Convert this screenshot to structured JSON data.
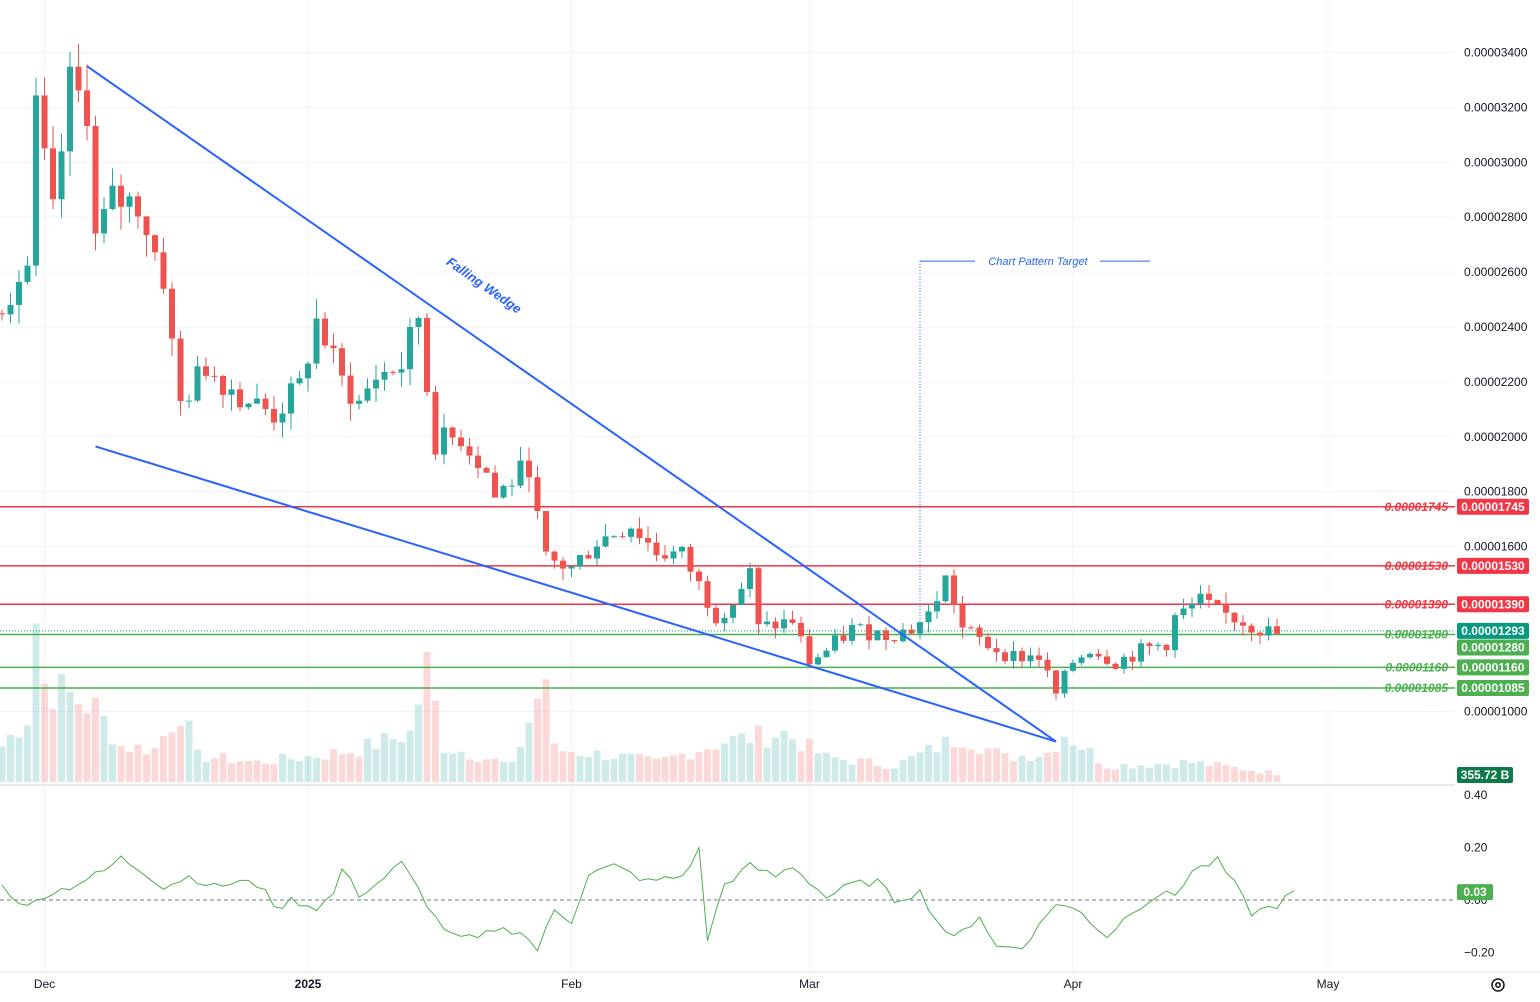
{
  "colors": {
    "up": "#26a69a",
    "down": "#ef5350",
    "resistance": "#f23645",
    "support": "#4caf50",
    "trendline": "#2962ff",
    "oscillator": "#4caf50",
    "grid": "#f0f3fa",
    "last_price": "#089981",
    "volume_badge": "#0e7a4a"
  },
  "price_axis": {
    "ticks": [
      "0.00003400",
      "0.00003200",
      "0.00003000",
      "0.00002800",
      "0.00002600",
      "0.00002400",
      "0.00002200",
      "0.00002000",
      "0.00001800",
      "0.00001600",
      "0.00001000"
    ],
    "tick_values": [
      3.4e-05,
      3.2e-05,
      3e-05,
      2.8e-05,
      2.6e-05,
      2.4e-05,
      2.2e-05,
      2e-05,
      1.8e-05,
      1.6e-05,
      1e-05
    ],
    "range": [
      8.3e-06,
      3.5e-05
    ]
  },
  "oscillator_axis": {
    "ticks": [
      "0.40",
      "0.20",
      "0.00",
      "−0.20"
    ],
    "tick_values": [
      0.4,
      0.2,
      0.0,
      -0.2
    ],
    "range": [
      -0.26,
      0.42
    ]
  },
  "date_axis": {
    "labels": [
      "Dec",
      "2025",
      "Feb",
      "Mar",
      "Apr",
      "May"
    ],
    "label_days": [
      5,
      36,
      67,
      95,
      126,
      156
    ]
  },
  "levels": [
    {
      "label": "0.00001745",
      "value": 1.745e-05,
      "kind": "resistance"
    },
    {
      "label": "0.00001530",
      "value": 1.53e-05,
      "kind": "resistance"
    },
    {
      "label": "0.00001390",
      "value": 1.39e-05,
      "kind": "resistance"
    },
    {
      "label": "0.00001280",
      "value": 1.28e-05,
      "kind": "support"
    },
    {
      "label": "0.00001160",
      "value": 1.16e-05,
      "kind": "support"
    },
    {
      "label": "0.00001085",
      "value": 1.085e-05,
      "kind": "support"
    }
  ],
  "last_price": {
    "label": "0.00001293",
    "value": 1.293e-05
  },
  "volume_badge": {
    "label": "355.72 B"
  },
  "oscillator_badge": {
    "label": "0.03",
    "value": 0.03
  },
  "annotations": {
    "pattern_name": "Falling Wedge",
    "target_label": "Chart Pattern Target"
  },
  "chart_data": {
    "type": "candlestick",
    "title": "",
    "xlabel": "",
    "ylabel": "",
    "grid": true,
    "candle_anchors": [
      {
        "day": 0,
        "close": 2.5e-05
      },
      {
        "day": 3,
        "close": 2.62e-05
      },
      {
        "day": 4,
        "close": 3.18e-05
      },
      {
        "day": 6,
        "close": 2.8e-05
      },
      {
        "day": 8,
        "close": 3.28e-05
      },
      {
        "day": 10,
        "close": 3.2e-05
      },
      {
        "day": 11,
        "close": 2.72e-05
      },
      {
        "day": 13,
        "close": 2.86e-05
      },
      {
        "day": 16,
        "close": 2.85e-05
      },
      {
        "day": 19,
        "close": 2.58e-05
      },
      {
        "day": 20,
        "close": 2.33e-05
      },
      {
        "day": 21,
        "close": 2.12e-05
      },
      {
        "day": 24,
        "close": 2.26e-05
      },
      {
        "day": 28,
        "close": 2.15e-05
      },
      {
        "day": 32,
        "close": 2.08e-05
      },
      {
        "day": 35,
        "close": 2.18e-05
      },
      {
        "day": 37,
        "close": 2.42e-05
      },
      {
        "day": 38,
        "close": 2.35e-05
      },
      {
        "day": 40,
        "close": 2.2e-05
      },
      {
        "day": 42,
        "close": 2.12e-05
      },
      {
        "day": 44,
        "close": 2.22e-05
      },
      {
        "day": 47,
        "close": 2.26e-05
      },
      {
        "day": 49,
        "close": 2.44e-05
      },
      {
        "day": 50,
        "close": 2.18e-05
      },
      {
        "day": 51,
        "close": 1.98e-05
      },
      {
        "day": 54,
        "close": 2e-05
      },
      {
        "day": 57,
        "close": 1.87e-05
      },
      {
        "day": 58,
        "close": 1.78e-05
      },
      {
        "day": 62,
        "close": 1.9e-05
      },
      {
        "day": 63,
        "close": 1.7e-05
      },
      {
        "day": 64,
        "close": 1.55e-05
      },
      {
        "day": 67,
        "close": 1.52e-05
      },
      {
        "day": 70,
        "close": 1.62e-05
      },
      {
        "day": 74,
        "close": 1.68e-05
      },
      {
        "day": 77,
        "close": 1.58e-05
      },
      {
        "day": 80,
        "close": 1.57e-05
      },
      {
        "day": 84,
        "close": 1.35e-05
      },
      {
        "day": 86,
        "close": 1.4e-05
      },
      {
        "day": 88,
        "close": 1.5e-05
      },
      {
        "day": 89,
        "close": 1.3e-05
      },
      {
        "day": 93,
        "close": 1.33e-05
      },
      {
        "day": 95,
        "close": 1.18e-05
      },
      {
        "day": 97,
        "close": 1.22e-05
      },
      {
        "day": 100,
        "close": 1.3e-05
      },
      {
        "day": 104,
        "close": 1.28e-05
      },
      {
        "day": 107,
        "close": 1.3e-05
      },
      {
        "day": 109,
        "close": 1.35e-05
      },
      {
        "day": 111,
        "close": 1.48e-05
      },
      {
        "day": 112,
        "close": 1.4e-05
      },
      {
        "day": 113,
        "close": 1.3e-05
      },
      {
        "day": 116,
        "close": 1.24e-05
      },
      {
        "day": 119,
        "close": 1.2e-05
      },
      {
        "day": 122,
        "close": 1.2e-05
      },
      {
        "day": 124,
        "close": 1.06e-05
      },
      {
        "day": 126,
        "close": 1.18e-05
      },
      {
        "day": 128,
        "close": 1.23e-05
      },
      {
        "day": 131,
        "close": 1.18e-05
      },
      {
        "day": 134,
        "close": 1.22e-05
      },
      {
        "day": 137,
        "close": 1.25e-05
      },
      {
        "day": 138,
        "close": 1.34e-05
      },
      {
        "day": 141,
        "close": 1.4e-05
      },
      {
        "day": 143,
        "close": 1.36e-05
      },
      {
        "day": 145,
        "close": 1.34e-05
      },
      {
        "day": 148,
        "close": 1.3e-05
      },
      {
        "day": 150,
        "close": 1.28e-05
      }
    ],
    "oscillator": {
      "name": "",
      "anchors": [
        {
          "day": 0,
          "value": 0.05
        },
        {
          "day": 3,
          "value": -0.03
        },
        {
          "day": 5,
          "value": 0.02
        },
        {
          "day": 8,
          "value": 0.05
        },
        {
          "day": 12,
          "value": 0.11
        },
        {
          "day": 14,
          "value": 0.16
        },
        {
          "day": 17,
          "value": 0.1
        },
        {
          "day": 19,
          "value": 0.05
        },
        {
          "day": 22,
          "value": 0.09
        },
        {
          "day": 25,
          "value": 0.05
        },
        {
          "day": 28,
          "value": 0.07
        },
        {
          "day": 31,
          "value": 0.05
        },
        {
          "day": 32,
          "value": -0.04
        },
        {
          "day": 34,
          "value": 0.0
        },
        {
          "day": 37,
          "value": -0.03
        },
        {
          "day": 39,
          "value": 0.02
        },
        {
          "day": 40,
          "value": 0.12
        },
        {
          "day": 42,
          "value": 0.02
        },
        {
          "day": 44,
          "value": 0.06
        },
        {
          "day": 47,
          "value": 0.14
        },
        {
          "day": 49,
          "value": 0.04
        },
        {
          "day": 51,
          "value": -0.07
        },
        {
          "day": 53,
          "value": -0.14
        },
        {
          "day": 56,
          "value": -0.15
        },
        {
          "day": 58,
          "value": -0.11
        },
        {
          "day": 61,
          "value": -0.12
        },
        {
          "day": 63,
          "value": -0.19
        },
        {
          "day": 65,
          "value": -0.04
        },
        {
          "day": 67,
          "value": -0.08
        },
        {
          "day": 69,
          "value": 0.1
        },
        {
          "day": 72,
          "value": 0.13
        },
        {
          "day": 76,
          "value": 0.07
        },
        {
          "day": 80,
          "value": 0.09
        },
        {
          "day": 82,
          "value": 0.19
        },
        {
          "day": 83,
          "value": -0.15
        },
        {
          "day": 85,
          "value": 0.06
        },
        {
          "day": 88,
          "value": 0.13
        },
        {
          "day": 91,
          "value": 0.09
        },
        {
          "day": 93,
          "value": 0.13
        },
        {
          "day": 97,
          "value": 0.01
        },
        {
          "day": 100,
          "value": 0.06
        },
        {
          "day": 103,
          "value": 0.07
        },
        {
          "day": 105,
          "value": 0.0
        },
        {
          "day": 108,
          "value": 0.03
        },
        {
          "day": 110,
          "value": -0.08
        },
        {
          "day": 112,
          "value": -0.15
        },
        {
          "day": 115,
          "value": -0.06
        },
        {
          "day": 117,
          "value": -0.18
        },
        {
          "day": 120,
          "value": -0.18
        },
        {
          "day": 122,
          "value": -0.1
        },
        {
          "day": 124,
          "value": -0.01
        },
        {
          "day": 127,
          "value": -0.05
        },
        {
          "day": 130,
          "value": -0.14
        },
        {
          "day": 133,
          "value": -0.04
        },
        {
          "day": 136,
          "value": 0.02
        },
        {
          "day": 138,
          "value": 0.02
        },
        {
          "day": 140,
          "value": 0.11
        },
        {
          "day": 143,
          "value": 0.15
        },
        {
          "day": 145,
          "value": 0.06
        },
        {
          "day": 147,
          "value": -0.05
        },
        {
          "day": 150,
          "value": -0.02
        },
        {
          "day": 152,
          "value": 0.03
        }
      ]
    },
    "volume": {
      "anchors": [
        {
          "day": 0,
          "value": 0.22
        },
        {
          "day": 3,
          "value": 0.4
        },
        {
          "day": 4,
          "value": 1.0
        },
        {
          "day": 5,
          "value": 0.6
        },
        {
          "day": 7,
          "value": 0.55
        },
        {
          "day": 11,
          "value": 0.45
        },
        {
          "day": 14,
          "value": 0.22
        },
        {
          "day": 18,
          "value": 0.2
        },
        {
          "day": 21,
          "value": 0.45
        },
        {
          "day": 23,
          "value": 0.16
        },
        {
          "day": 30,
          "value": 0.12
        },
        {
          "day": 37,
          "value": 0.16
        },
        {
          "day": 42,
          "value": 0.2
        },
        {
          "day": 48,
          "value": 0.3
        },
        {
          "day": 50,
          "value": 0.7
        },
        {
          "day": 52,
          "value": 0.22
        },
        {
          "day": 60,
          "value": 0.1
        },
        {
          "day": 64,
          "value": 0.65
        },
        {
          "day": 65,
          "value": 0.2
        },
        {
          "day": 72,
          "value": 0.16
        },
        {
          "day": 77,
          "value": 0.12
        },
        {
          "day": 85,
          "value": 0.25
        },
        {
          "day": 92,
          "value": 0.3
        },
        {
          "day": 97,
          "value": 0.15
        },
        {
          "day": 105,
          "value": 0.1
        },
        {
          "day": 113,
          "value": 0.28
        },
        {
          "day": 118,
          "value": 0.15
        },
        {
          "day": 123,
          "value": 0.18
        },
        {
          "day": 125,
          "value": 0.3
        },
        {
          "day": 130,
          "value": 0.1
        },
        {
          "day": 140,
          "value": 0.12
        },
        {
          "day": 152,
          "value": 0.04
        }
      ]
    },
    "trendlines": [
      {
        "name": "wedge-upper",
        "from": {
          "day": 10,
          "price": 3.35e-05
        },
        "to": {
          "day": 124,
          "price": 8.9e-06
        }
      },
      {
        "name": "wedge-lower",
        "from": {
          "day": 11,
          "price": 1.965e-05
        },
        "to": {
          "day": 124,
          "price": 8.9e-06
        }
      }
    ],
    "target_marker": {
      "day": 108,
      "price_top": 2.64e-05,
      "price_bottom": 1.28e-05
    }
  }
}
